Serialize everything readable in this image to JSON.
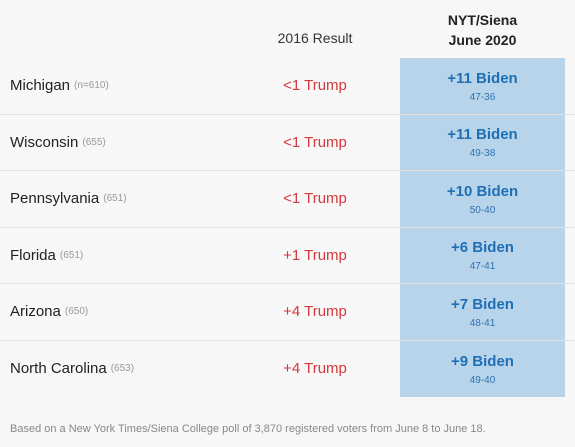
{
  "header": {
    "result_label": "2016 Result",
    "poll_label_line1": "NYT/Siena",
    "poll_label_line2": "June 2020"
  },
  "chart_data": {
    "type": "table",
    "columns": [
      "",
      "2016 Result",
      "NYT/Siena June 2020"
    ],
    "rows": [
      {
        "state": "Michigan",
        "n": "(n=610)",
        "result_2016": "<1 Trump",
        "poll_margin": "+11 Biden",
        "poll_split": "47-36"
      },
      {
        "state": "Wisconsin",
        "n": "(655)",
        "result_2016": "<1 Trump",
        "poll_margin": "+11 Biden",
        "poll_split": "49-38"
      },
      {
        "state": "Pennsylvania",
        "n": "(651)",
        "result_2016": "<1 Trump",
        "poll_margin": "+10 Biden",
        "poll_split": "50-40"
      },
      {
        "state": "Florida",
        "n": "(651)",
        "result_2016": "+1 Trump",
        "poll_margin": "+6 Biden",
        "poll_split": "47-41"
      },
      {
        "state": "Arizona",
        "n": "(650)",
        "result_2016": "+4 Trump",
        "poll_margin": "+7 Biden",
        "poll_split": "48-41"
      },
      {
        "state": "North Carolina",
        "n": "(653)",
        "result_2016": "+4 Trump",
        "poll_margin": "+9 Biden",
        "poll_split": "49-40"
      }
    ]
  },
  "colors": {
    "trump_red": "#d0393e",
    "biden_blue": "#1f6fb4",
    "poll_cell_bg": "#b8d4eb"
  },
  "footnote": "Based on a New York Times/Siena College poll of 3,870 registered voters from June 8 to June 18."
}
